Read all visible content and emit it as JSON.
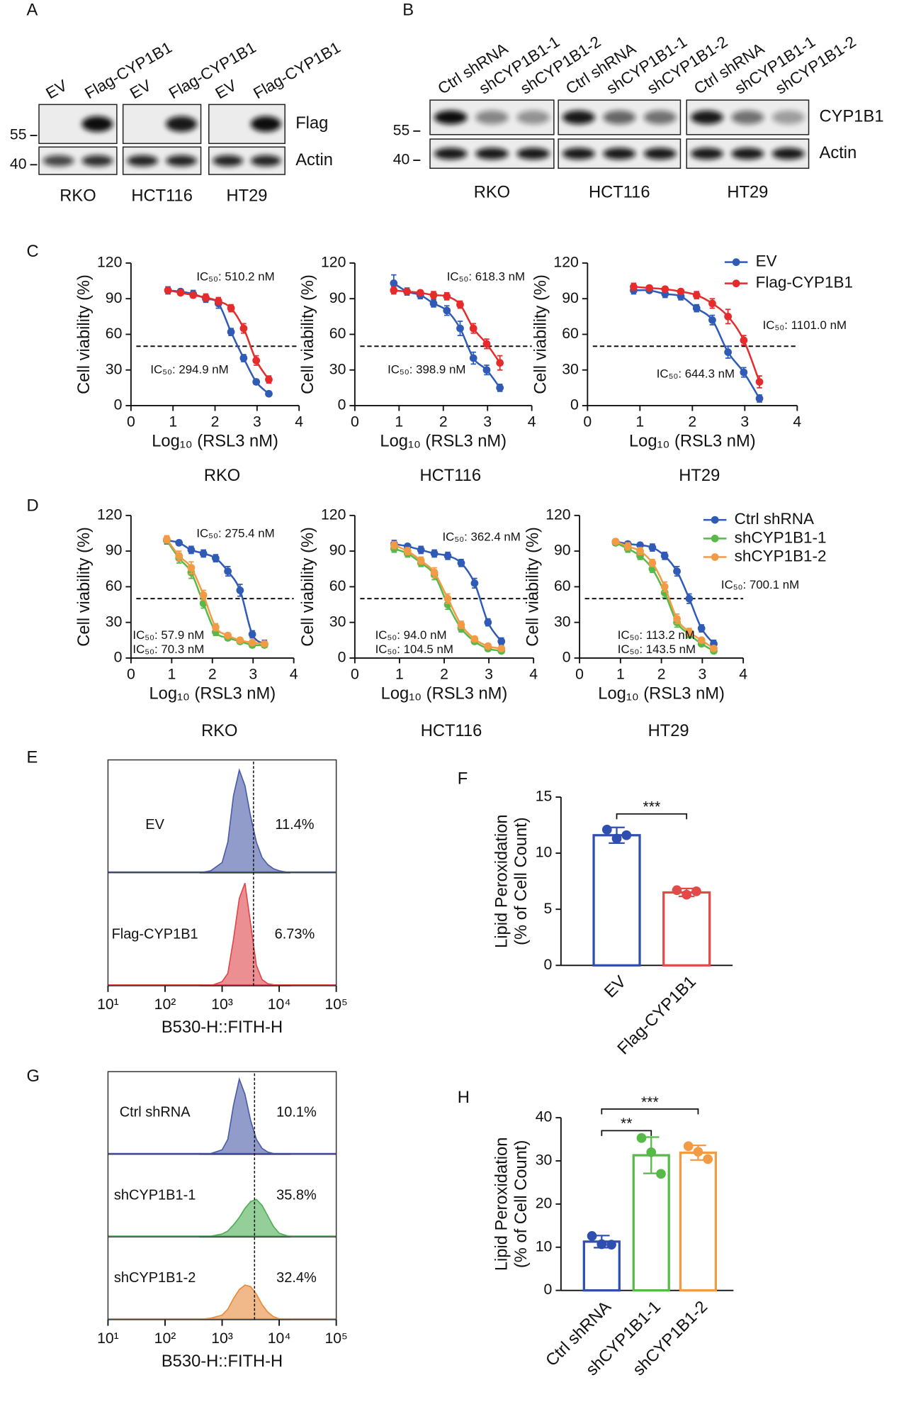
{
  "labels": [
    "A",
    "B",
    "C",
    "D",
    "E",
    "F",
    "G",
    "H"
  ],
  "blot_a": {
    "lanes": [
      "EV",
      "Flag-CYP1B1"
    ],
    "cell_lines": [
      "RKO",
      "HCT116",
      "HT29"
    ],
    "rows": [
      "Flag",
      "Actin"
    ],
    "markers": [
      "55",
      "40"
    ]
  },
  "blot_b": {
    "lanes": [
      "Ctrl shRNA",
      "shCYP1B1-1",
      "shCYP1B1-2"
    ],
    "cell_lines": [
      "RKO",
      "HCT116",
      "HT29"
    ],
    "rows": [
      "CYP1B1",
      "Actin"
    ],
    "markers": [
      "55",
      "40"
    ]
  },
  "chart_data": [
    {
      "type": "line",
      "title": "RKO",
      "xlabel": "Log₁₀ (RSL3 nM)",
      "ylabel": "Cell viability (%)",
      "x": [
        0.88,
        1.18,
        1.48,
        1.78,
        2.08,
        2.38,
        2.68,
        2.98,
        3.28
      ],
      "xlim": [
        0,
        4
      ],
      "xticks": [
        0,
        1,
        2,
        3,
        4
      ],
      "ylim": [
        0,
        120
      ],
      "yticks": [
        0,
        30,
        60,
        90,
        120
      ],
      "hline": 50,
      "series": [
        {
          "color": "#2f5bb7",
          "values": [
            97,
            96,
            94,
            90,
            86,
            62,
            40,
            20,
            10
          ],
          "errors": [
            3,
            2,
            3,
            3,
            4,
            3,
            3,
            2,
            2
          ]
        },
        {
          "color": "#e52b2b",
          "values": [
            97,
            95,
            93,
            91,
            88,
            82,
            65,
            38,
            22
          ],
          "errors": [
            2,
            2,
            2,
            3,
            3,
            3,
            4,
            4,
            3
          ]
        }
      ],
      "annotations": [
        {
          "text": "IC₅₀: 294.9 nM",
          "color": "#2f5bb7"
        },
        {
          "text": "IC₅₀: 510.2 nM",
          "color": "#e52b2b"
        }
      ]
    },
    {
      "type": "line",
      "title": "HCT116",
      "xlabel": "Log₁₀ (RSL3 nM)",
      "ylabel": "Cell viability (%)",
      "x": [
        0.88,
        1.18,
        1.48,
        1.78,
        2.08,
        2.38,
        2.68,
        2.98,
        3.28
      ],
      "xlim": [
        0,
        4
      ],
      "xticks": [
        0,
        1,
        2,
        3,
        4
      ],
      "ylim": [
        0,
        120
      ],
      "yticks": [
        0,
        30,
        60,
        90,
        120
      ],
      "hline": 50,
      "series": [
        {
          "color": "#2f5bb7",
          "values": [
            103,
            96,
            93,
            86,
            80,
            65,
            40,
            30,
            15
          ],
          "errors": [
            7,
            3,
            3,
            3,
            4,
            6,
            5,
            4,
            3
          ]
        },
        {
          "color": "#e52b2b",
          "values": [
            97,
            96,
            95,
            93,
            92,
            85,
            65,
            52,
            36
          ],
          "errors": [
            3,
            2,
            2,
            3,
            3,
            3,
            4,
            4,
            6
          ]
        }
      ],
      "annotations": [
        {
          "text": "IC₅₀: 398.9 nM",
          "color": "#2f5bb7"
        },
        {
          "text": "IC₅₀: 618.3 nM",
          "color": "#e52b2b"
        }
      ]
    },
    {
      "type": "line",
      "title": "HT29",
      "xlabel": "Log₁₀ (RSL3 nM)",
      "ylabel": "Cell viability (%)",
      "x": [
        0.88,
        1.18,
        1.48,
        1.78,
        2.08,
        2.38,
        2.68,
        2.98,
        3.28
      ],
      "xlim": [
        0,
        4
      ],
      "xticks": [
        0,
        1,
        2,
        3,
        4
      ],
      "ylim": [
        0,
        120
      ],
      "yticks": [
        0,
        30,
        60,
        90,
        120
      ],
      "hline": 50,
      "legend": "outside-right",
      "series": [
        {
          "name": "EV",
          "color": "#2f5bb7",
          "values": [
            97,
            97,
            94,
            92,
            82,
            72,
            45,
            28,
            6
          ],
          "errors": [
            3,
            2,
            3,
            3,
            3,
            4,
            5,
            4,
            3
          ]
        },
        {
          "name": "Flag-CYP1B1",
          "color": "#e52b2b",
          "values": [
            100,
            99,
            98,
            96,
            93,
            86,
            75,
            55,
            20
          ],
          "errors": [
            3,
            2,
            2,
            2,
            3,
            4,
            6,
            4,
            5
          ]
        }
      ],
      "annotations": [
        {
          "text": "IC₅₀: 644.3 nM",
          "color": "#2f5bb7"
        },
        {
          "text": "IC₅₀: 1101.0 nM",
          "color": "#e52b2b"
        }
      ]
    },
    {
      "type": "line",
      "title": "RKO",
      "xlabel": "Log₁₀ (RSL3 nM)",
      "ylabel": "Cell viability (%)",
      "x": [
        0.88,
        1.18,
        1.48,
        1.78,
        2.08,
        2.38,
        2.68,
        2.98,
        3.28
      ],
      "xlim": [
        0,
        4
      ],
      "xticks": [
        0,
        1,
        2,
        3,
        4
      ],
      "ylim": [
        0,
        120
      ],
      "yticks": [
        0,
        30,
        60,
        90,
        120
      ],
      "hline": 50,
      "series": [
        {
          "color": "#2f5bb7",
          "values": [
            99,
            97,
            91,
            88,
            84,
            73,
            57,
            20,
            12
          ],
          "errors": [
            3,
            2,
            3,
            3,
            3,
            4,
            5,
            3,
            3
          ]
        },
        {
          "color": "#57b947",
          "values": [
            99,
            84,
            72,
            46,
            22,
            17,
            14,
            11,
            11
          ],
          "errors": [
            2,
            4,
            5,
            4,
            3,
            2,
            2,
            2,
            2
          ]
        },
        {
          "color": "#f39a45",
          "values": [
            100,
            86,
            76,
            53,
            26,
            19,
            15,
            13,
            12
          ],
          "errors": [
            3,
            4,
            5,
            4,
            3,
            2,
            2,
            2,
            2
          ]
        }
      ],
      "annotations": [
        {
          "text": "IC₅₀: 275.4 nM",
          "color": "#2f5bb7"
        },
        {
          "text": "IC₅₀: 57.9 nM",
          "color": "#57b947"
        },
        {
          "text": "IC₅₀: 70.3 nM",
          "color": "#f39a45"
        }
      ]
    },
    {
      "type": "line",
      "title": "HCT116",
      "xlabel": "Log₁₀ (RSL3 nM)",
      "ylabel": "Cell viability (%)",
      "x": [
        0.88,
        1.18,
        1.48,
        1.78,
        2.08,
        2.38,
        2.68,
        2.98,
        3.28
      ],
      "xlim": [
        0,
        4
      ],
      "xticks": [
        0,
        1,
        2,
        3,
        4
      ],
      "ylim": [
        0,
        120
      ],
      "yticks": [
        0,
        30,
        60,
        90,
        120
      ],
      "hline": 50,
      "series": [
        {
          "color": "#2f5bb7",
          "values": [
            96,
            94,
            91,
            88,
            86,
            80,
            63,
            30,
            14
          ],
          "errors": [
            3,
            2,
            3,
            3,
            3,
            3,
            4,
            3,
            3
          ]
        },
        {
          "color": "#57b947",
          "values": [
            92,
            88,
            80,
            70,
            45,
            25,
            14,
            8,
            6
          ],
          "errors": [
            3,
            3,
            3,
            4,
            4,
            3,
            2,
            2,
            2
          ]
        },
        {
          "color": "#f39a45",
          "values": [
            95,
            90,
            82,
            72,
            50,
            28,
            16,
            10,
            8
          ],
          "errors": [
            3,
            3,
            3,
            4,
            4,
            3,
            2,
            2,
            2
          ]
        }
      ],
      "annotations": [
        {
          "text": "IC₅₀: 362.4 nM",
          "color": "#2f5bb7"
        },
        {
          "text": "IC₅₀: 94.0 nM",
          "color": "#57b947"
        },
        {
          "text": "IC₅₀: 104.5 nM",
          "color": "#f39a45"
        }
      ]
    },
    {
      "type": "line",
      "title": "HT29",
      "xlabel": "Log₁₀ (RSL3 nM)",
      "ylabel": "Cell viability (%)",
      "x": [
        0.88,
        1.18,
        1.48,
        1.78,
        2.08,
        2.38,
        2.68,
        2.98,
        3.28
      ],
      "xlim": [
        0,
        4
      ],
      "xticks": [
        0,
        1,
        2,
        3,
        4
      ],
      "ylim": [
        0,
        120
      ],
      "yticks": [
        0,
        30,
        60,
        90,
        120
      ],
      "hline": 50,
      "legend": "outside-right",
      "series": [
        {
          "name": "Ctrl shRNA",
          "color": "#2f5bb7",
          "values": [
            98,
            96,
            95,
            93,
            86,
            73,
            50,
            25,
            12
          ],
          "errors": [
            2,
            2,
            2,
            3,
            3,
            4,
            4,
            3,
            3
          ]
        },
        {
          "name": "shCYP1B1-1",
          "color": "#57b947",
          "values": [
            97,
            92,
            86,
            75,
            55,
            30,
            20,
            12,
            6
          ],
          "errors": [
            2,
            3,
            3,
            3,
            4,
            4,
            3,
            2,
            2
          ]
        },
        {
          "name": "shCYP1B1-2",
          "color": "#f39a45",
          "values": [
            98,
            94,
            90,
            80,
            60,
            33,
            22,
            15,
            8
          ],
          "errors": [
            2,
            3,
            3,
            3,
            4,
            4,
            3,
            2,
            2
          ]
        }
      ],
      "annotations": [
        {
          "text": "IC₅₀: 700.1 nM",
          "color": "#2f5bb7"
        },
        {
          "text": "IC₅₀: 113.2 nM",
          "color": "#57b947"
        },
        {
          "text": "IC₅₀: 143.5 nM",
          "color": "#f39a45"
        }
      ]
    },
    {
      "type": "density",
      "xlabel": "B530-H::FITH-H",
      "xscale": "log",
      "xlim": [
        10,
        100000
      ],
      "xticks": [
        {
          "value": 10,
          "label": "10¹"
        },
        {
          "value": 100,
          "label": "10²"
        },
        {
          "value": 1000,
          "label": "10³"
        },
        {
          "value": 10000,
          "label": "10⁴"
        },
        {
          "value": 100000,
          "label": "10⁵"
        }
      ],
      "ylim": [
        0,
        110
      ],
      "gate": 3550,
      "x": [
        400,
        630,
        1000,
        1260,
        1580,
        2000,
        2510,
        3160,
        3980,
        5010,
        6310,
        7940,
        10000,
        15800
      ],
      "series": [
        {
          "name": "EV",
          "color": "#4a5aa8",
          "label": "11.4%",
          "values": [
            0,
            2,
            10,
            30,
            75,
            100,
            85,
            55,
            30,
            15,
            8,
            4,
            2,
            0
          ]
        },
        {
          "name": "Flag-CYP1B1",
          "color": "#e0454a",
          "label": "6.73%",
          "values": [
            0,
            0,
            4,
            12,
            45,
            85,
            100,
            60,
            20,
            6,
            2,
            1,
            0,
            0
          ]
        }
      ]
    },
    {
      "type": "bar",
      "ylabel": [
        "Lipid Peroxidation",
        "(% of Cell Count)"
      ],
      "categories": [
        "EV",
        "Flag-CYP1B1"
      ],
      "values": [
        11.6,
        6.5
      ],
      "errors": [
        0.7,
        0.35
      ],
      "points": [
        [
          12.1,
          11.3,
          11.6
        ],
        [
          6.7,
          6.3,
          6.6
        ]
      ],
      "colors": [
        "#2f4fb0",
        "#e24a4a"
      ],
      "ylim": [
        0,
        15
      ],
      "yticks": [
        0,
        5,
        10,
        15
      ],
      "brackets": [
        {
          "from": 0,
          "to": 1,
          "y": 13.5,
          "label": "***"
        }
      ]
    },
    {
      "type": "density",
      "xlabel": "B530-H::FITH-H",
      "xscale": "log",
      "xlim": [
        10,
        100000
      ],
      "xticks": [
        {
          "value": 10,
          "label": "10¹"
        },
        {
          "value": 100,
          "label": "10²"
        },
        {
          "value": 1000,
          "label": "10³"
        },
        {
          "value": 10000,
          "label": "10⁴"
        },
        {
          "value": 100000,
          "label": "10⁵"
        }
      ],
      "ylim": [
        0,
        110
      ],
      "gate": 3700,
      "x": [
        400,
        630,
        1000,
        1260,
        1580,
        2000,
        2510,
        3160,
        3980,
        5010,
        6310,
        7940,
        10000,
        15800
      ],
      "series": [
        {
          "name": "Ctrl shRNA",
          "color": "#4a5aa8",
          "label": "10.1%",
          "values": [
            0,
            1,
            6,
            20,
            65,
            100,
            80,
            45,
            20,
            8,
            3,
            1,
            0,
            0
          ]
        },
        {
          "name": "shCYP1B1-1",
          "color": "#4cad55",
          "label": "35.8%",
          "values": [
            0,
            1,
            4,
            8,
            16,
            26,
            38,
            47,
            50,
            42,
            28,
            14,
            5,
            0
          ]
        },
        {
          "name": "shCYP1B1-2",
          "color": "#e8893a",
          "label": "32.4%",
          "values": [
            0,
            2,
            6,
            14,
            28,
            40,
            46,
            44,
            34,
            20,
            10,
            4,
            1,
            0
          ]
        }
      ]
    },
    {
      "type": "bar",
      "ylabel": [
        "Lipid Peroxidation",
        "(% of Cell Count)"
      ],
      "categories": [
        "Ctrl shRNA",
        "shCYP1B1-1",
        "shCYP1B1-2"
      ],
      "values": [
        11.3,
        31.3,
        31.9
      ],
      "errors": [
        1.4,
        4.2,
        1.7
      ],
      "points": [
        [
          12.6,
          10.7,
          10.6
        ],
        [
          35.3,
          32.0,
          27.0
        ],
        [
          33.4,
          32.1,
          30.4
        ]
      ],
      "colors": [
        "#2f4fb0",
        "#57b947",
        "#f39a45"
      ],
      "ylim": [
        0,
        40
      ],
      "yticks": [
        0,
        10,
        20,
        30,
        40
      ],
      "brackets": [
        {
          "from": 0,
          "to": 1,
          "y": 37,
          "label": "**"
        },
        {
          "from": 0,
          "to": 2,
          "y": 42,
          "label": "***"
        }
      ]
    }
  ]
}
